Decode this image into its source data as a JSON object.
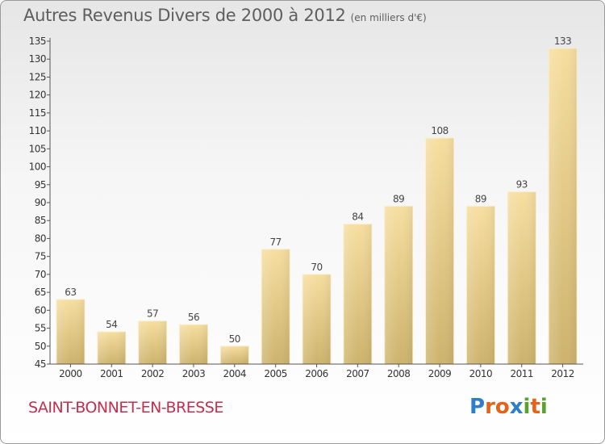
{
  "header": {
    "title": "Autres Revenus Divers de 2000 à 2012",
    "unit": "(en milliers d'€)"
  },
  "footer": {
    "town": "SAINT-BONNET-EN-BRESSE",
    "town_color": "#c0314f",
    "logo": [
      "P",
      "r",
      "o",
      "x",
      "i",
      "t",
      "i"
    ],
    "logo_colors": [
      "#2f7fc6",
      "#e2641c",
      "#e2641c",
      "#2f7fc6",
      "#5aa12f",
      "#e2641c",
      "#5aa12f"
    ]
  },
  "colors": {
    "bar_light": "#f6dea0",
    "bar_dark": "#cdb36d",
    "axis": "#555555"
  },
  "chart_data": {
    "type": "bar",
    "title": "Autres Revenus Divers de 2000 à 2012",
    "subtitle": "(en milliers d'€)",
    "xlabel": "",
    "ylabel": "",
    "categories": [
      "2000",
      "2001",
      "2002",
      "2003",
      "2004",
      "2005",
      "2006",
      "2007",
      "2008",
      "2009",
      "2010",
      "2011",
      "2012"
    ],
    "values": [
      63,
      54,
      57,
      56,
      50,
      77,
      70,
      84,
      89,
      108,
      89,
      93,
      133
    ],
    "ylim": [
      45,
      135
    ],
    "yticks": [
      45,
      50,
      55,
      60,
      65,
      70,
      75,
      80,
      85,
      90,
      95,
      100,
      105,
      110,
      115,
      120,
      125,
      130,
      135
    ],
    "grid": false,
    "legend": "none"
  }
}
